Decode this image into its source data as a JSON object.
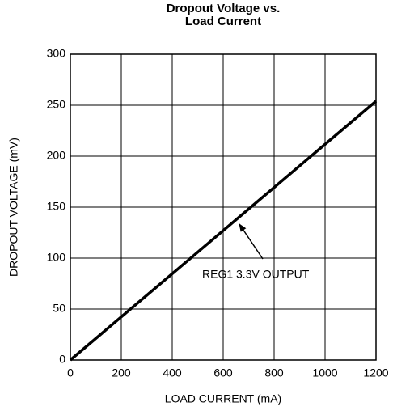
{
  "chart_data": {
    "type": "line",
    "title": "Dropout Voltage vs. Load Current",
    "x_label": "LOAD CURRENT (mA)",
    "y_label": "DROPOUT VOLTAGE (mV)",
    "x": [
      0,
      1200
    ],
    "series": [
      {
        "name": "REG1 3.3V OUTPUT",
        "color": "#000000",
        "values": [
          0,
          254
        ]
      }
    ],
    "annotation": "REG1 3.3V OUTPUT",
    "xlim": [
      0,
      1200
    ],
    "xticks": [
      0,
      200,
      400,
      600,
      800,
      1000,
      1200
    ],
    "ylim": [
      0,
      300
    ],
    "yticks": [
      0,
      50,
      100,
      150,
      200,
      250,
      300
    ],
    "grid": true
  }
}
